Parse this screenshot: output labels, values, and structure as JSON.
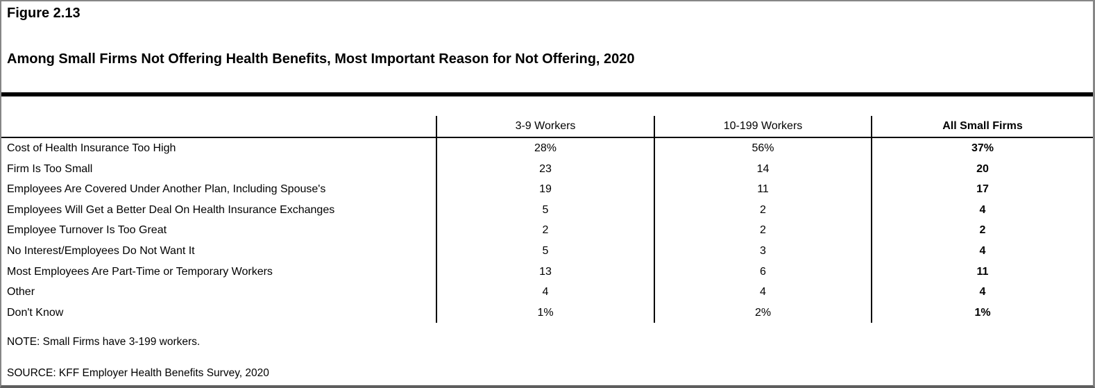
{
  "figure": {
    "label": "Figure 2.13",
    "title": "Among Small Firms Not Offering Health Benefits, Most Important Reason for Not Offering, 2020"
  },
  "table": {
    "columns": [
      "3-9 Workers",
      "10-199 Workers",
      "All Small Firms"
    ],
    "rows": [
      {
        "reason": "Cost of Health Insurance Too High",
        "values": [
          "28%",
          "56%",
          "37%"
        ]
      },
      {
        "reason": "Firm Is Too Small",
        "values": [
          "23",
          "14",
          "20"
        ]
      },
      {
        "reason": "Employees Are Covered Under Another Plan, Including Spouse's",
        "values": [
          "19",
          "11",
          "17"
        ]
      },
      {
        "reason": "Employees Will Get a Better Deal On Health Insurance Exchanges",
        "values": [
          "5",
          "2",
          "4"
        ]
      },
      {
        "reason": "Employee Turnover Is Too Great",
        "values": [
          "2",
          "2",
          "2"
        ]
      },
      {
        "reason": "No Interest/Employees Do Not Want It",
        "values": [
          "5",
          "3",
          "4"
        ]
      },
      {
        "reason": "Most Employees Are Part-Time or Temporary Workers",
        "values": [
          "13",
          "6",
          "11"
        ]
      },
      {
        "reason": "Other",
        "values": [
          "4",
          "4",
          "4"
        ]
      },
      {
        "reason": "Don't Know",
        "values": [
          "1%",
          "2%",
          "1%"
        ]
      }
    ]
  },
  "notes": {
    "note": "NOTE: Small Firms have 3-199 workers.",
    "source": "SOURCE: KFF Employer Health Benefits Survey, 2020"
  },
  "chart_data": {
    "type": "table",
    "title": "Among Small Firms Not Offering Health Benefits, Most Important Reason for Not Offering, 2020",
    "figure_number": "Figure 2.13",
    "columns": [
      "3-9 Workers",
      "10-199 Workers",
      "All Small Firms"
    ],
    "row_labels": [
      "Cost of Health Insurance Too High",
      "Firm Is Too Small",
      "Employees Are Covered Under Another Plan, Including Spouse's",
      "Employees Will Get a Better Deal On Health Insurance Exchanges",
      "Employee Turnover Is Too Great",
      "No Interest/Employees Do Not Want It",
      "Most Employees Are Part-Time or Temporary Workers",
      "Other",
      "Don't Know"
    ],
    "values": [
      [
        28,
        56,
        37
      ],
      [
        23,
        14,
        20
      ],
      [
        19,
        11,
        17
      ],
      [
        5,
        2,
        4
      ],
      [
        2,
        2,
        2
      ],
      [
        5,
        3,
        4
      ],
      [
        13,
        6,
        11
      ],
      [
        4,
        4,
        4
      ],
      [
        1,
        2,
        1
      ]
    ],
    "value_unit": "percent",
    "note": "NOTE: Small Firms have 3-199 workers.",
    "source": "SOURCE: KFF Employer Health Benefits Survey, 2020"
  }
}
